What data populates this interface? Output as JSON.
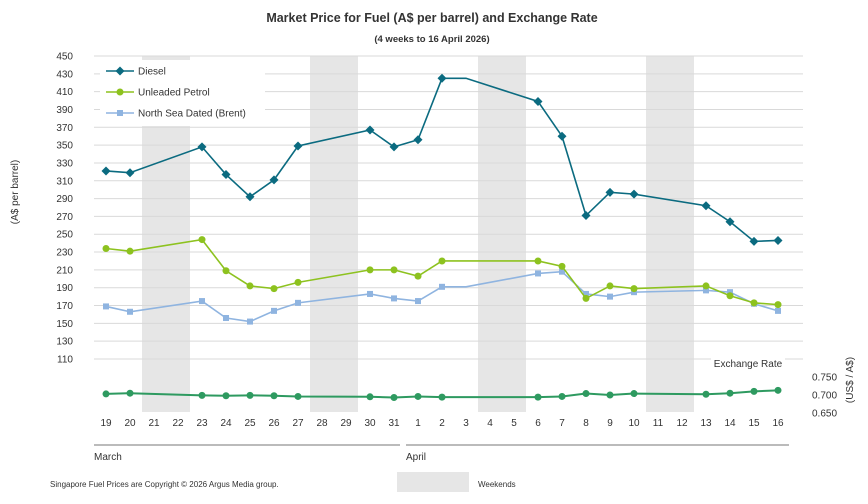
{
  "chart_data": {
    "type": "line",
    "title": "Market Price for Fuel (A$ per barrel) and Exchange Rate",
    "subtitle": "(4 weeks to 16 April 2026)",
    "ylabel": "(A$ per barrel)",
    "ylabel_right": "(US$ / A$)",
    "ylim": [
      110,
      450
    ],
    "yticks": [
      110,
      130,
      150,
      170,
      190,
      210,
      230,
      250,
      270,
      290,
      310,
      330,
      350,
      370,
      390,
      410,
      430,
      450
    ],
    "ylim_right": [
      0.65,
      0.75
    ],
    "yticks_right": [
      "0.650",
      "0.700",
      "0.750"
    ],
    "x": [
      "19",
      "20",
      "21",
      "22",
      "23",
      "24",
      "25",
      "26",
      "27",
      "28",
      "29",
      "30",
      "31",
      "1",
      "2",
      "3",
      "4",
      "5",
      "6",
      "7",
      "8",
      "9",
      "10",
      "11",
      "12",
      "13",
      "14",
      "15",
      "16"
    ],
    "months": [
      {
        "label": "March",
        "start": 0,
        "end": 12
      },
      {
        "label": "April",
        "start": 13,
        "end": 28
      }
    ],
    "weekends": [
      [
        2,
        3
      ],
      [
        9,
        10
      ],
      [
        16,
        17
      ],
      [
        23,
        24
      ]
    ],
    "series": [
      {
        "name": "Diesel",
        "color": "#0b6b80",
        "marker": "diamond",
        "values": [
          321,
          319,
          null,
          null,
          348,
          317,
          292,
          311,
          349,
          null,
          null,
          367,
          348,
          356,
          425,
          425,
          null,
          null,
          399,
          360,
          271,
          297,
          295,
          null,
          null,
          282,
          264,
          242,
          243
        ]
      },
      {
        "name": "Unleaded Petrol",
        "color": "#8dc21f",
        "marker": "circle",
        "values": [
          234,
          231,
          null,
          null,
          244,
          209,
          192,
          189,
          196,
          null,
          null,
          210,
          210,
          203,
          220,
          null,
          null,
          null,
          220,
          214,
          178,
          192,
          189,
          null,
          null,
          192,
          181,
          173,
          171
        ]
      },
      {
        "name": "North Sea Dated (Brent)",
        "color": "#8fb4e0",
        "marker": "square",
        "values": [
          169,
          163,
          null,
          null,
          175,
          156,
          152,
          164,
          173,
          null,
          null,
          183,
          178,
          175,
          191,
          191,
          null,
          null,
          206,
          208,
          183,
          180,
          185,
          null,
          null,
          187,
          185,
          172,
          164
        ]
      },
      {
        "name": "Exchange Rate",
        "color": "#2e9a60",
        "marker": "circle",
        "axis": "right",
        "values": [
          0.703,
          0.705,
          null,
          null,
          0.699,
          0.698,
          0.699,
          0.698,
          0.696,
          null,
          null,
          0.695,
          0.693,
          0.696,
          0.694,
          null,
          null,
          null,
          0.694,
          0.696,
          0.704,
          0.7,
          0.704,
          null,
          null,
          0.702,
          0.705,
          0.71,
          0.713
        ]
      }
    ],
    "legend": [
      "Diesel",
      "Unleaded Petrol",
      "North Sea Dated (Brent)"
    ],
    "legend_position": "top-left",
    "exchange_label": "Exchange Rate",
    "weekends_label": "Weekends",
    "grid": true
  },
  "footer": {
    "copyright": "Singapore Fuel Prices are Copyright © 2026 Argus Media group."
  }
}
